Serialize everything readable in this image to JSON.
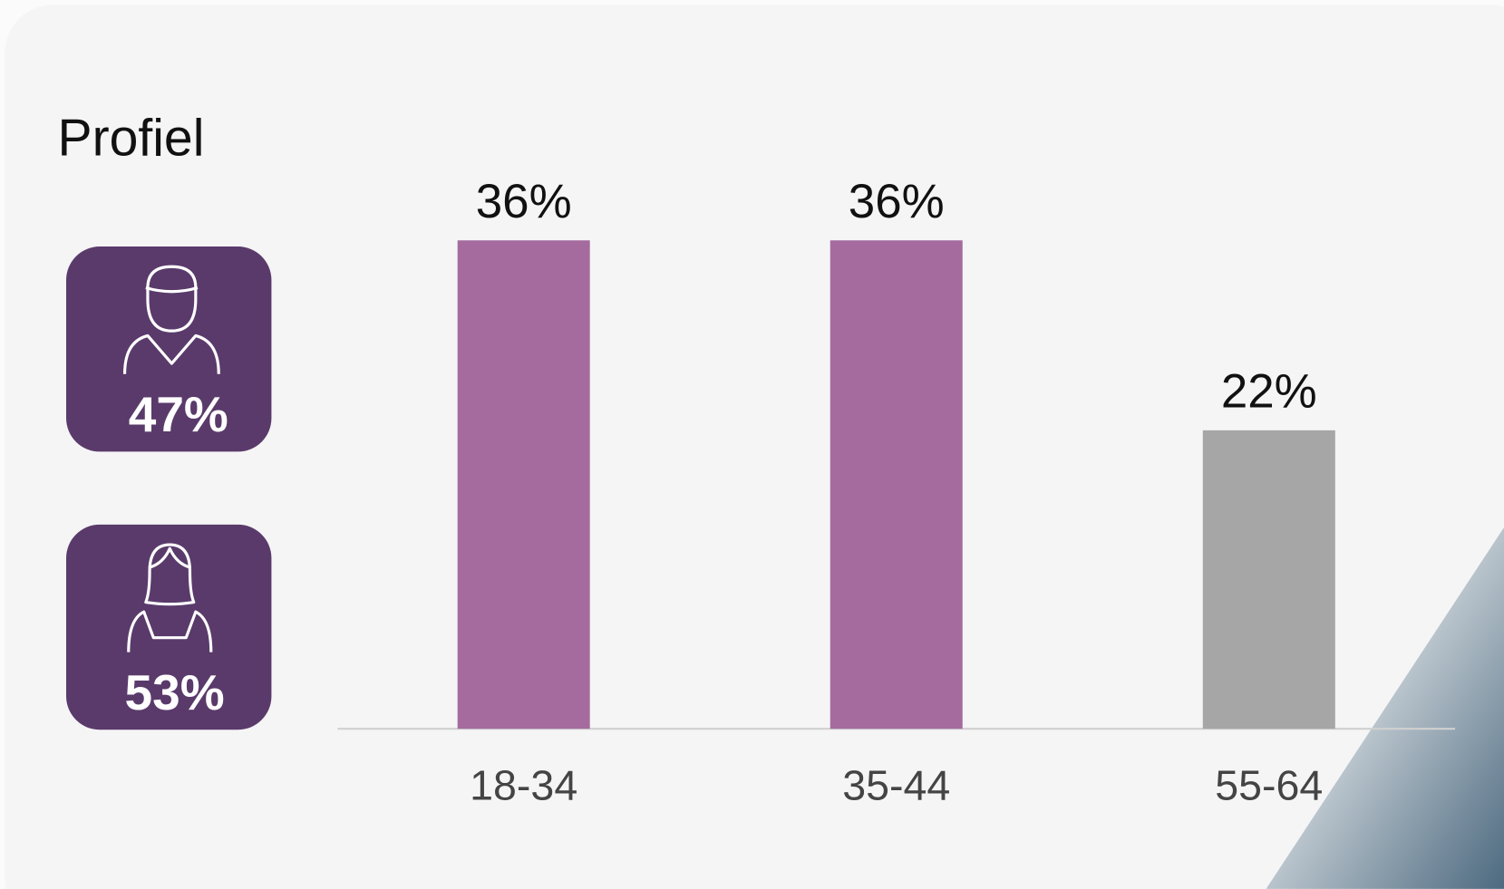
{
  "chart_data": {
    "type": "bar",
    "title": "Profiel",
    "categories": [
      "18-34",
      "35-44",
      "55-64"
    ],
    "values": [
      36,
      36,
      22
    ],
    "value_labels": [
      "36%",
      "36%",
      "22%"
    ],
    "colors": [
      "#a56b9e",
      "#a56b9e",
      "#a6a6a6"
    ]
  },
  "gender": {
    "male": "47%",
    "female": "53%"
  }
}
